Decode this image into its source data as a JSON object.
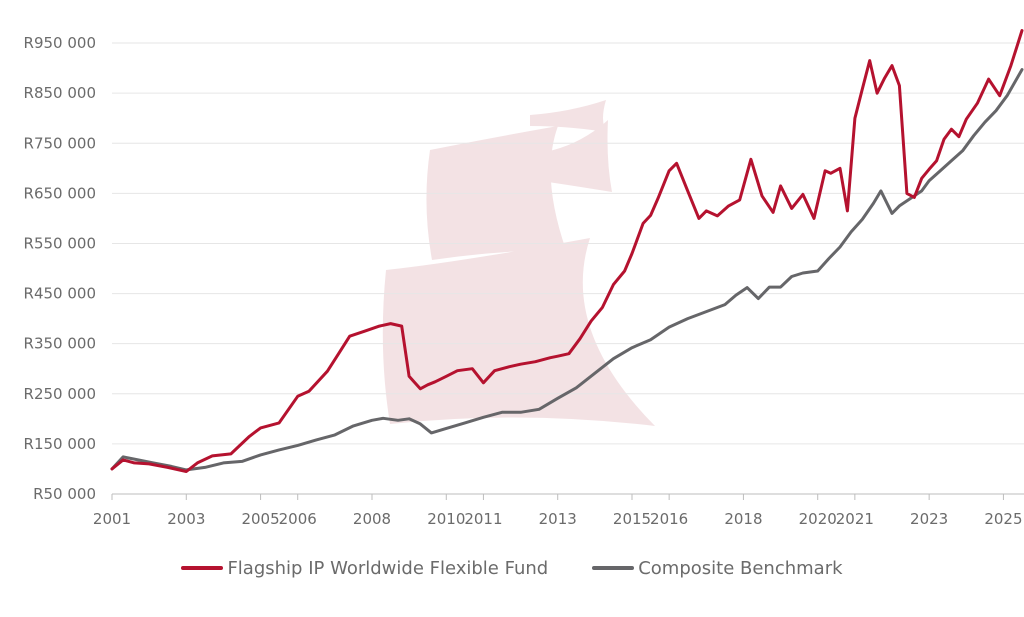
{
  "chart_data": {
    "type": "line",
    "title": "",
    "xlabel": "",
    "ylabel": "",
    "ylim": [
      50000,
      1000000
    ],
    "xlim": [
      2001.0,
      2025.5
    ],
    "grid": true,
    "legend_position": "bottom-center",
    "y_ticks": [
      "R950 000",
      "R850 000",
      "R750 000",
      "R650 000",
      "R550 000",
      "R450 000",
      "R350 000",
      "R250 000",
      "R150 000",
      "R50 000"
    ],
    "y_tick_values": [
      950000,
      850000,
      750000,
      650000,
      550000,
      450000,
      350000,
      250000,
      150000,
      50000
    ],
    "x_ticks": [
      "2001",
      "2003",
      "2005",
      "2006",
      "2008",
      "2010",
      "2011",
      "2013",
      "2015",
      "2016",
      "2018",
      "2020",
      "2021",
      "2023",
      "2025"
    ],
    "x_tick_values": [
      2001.0,
      2003.0,
      2005.0,
      2006.0,
      2008.0,
      2010.0,
      2011.0,
      2013.0,
      2015.0,
      2016.0,
      2018.0,
      2020.0,
      2021.0,
      2023.0,
      2025.0
    ],
    "series": [
      {
        "name": "Flagship IP Worldwide Flexible Fund",
        "color": "#b5122f",
        "x": [
          2001.0,
          2001.3,
          2001.6,
          2002.0,
          2002.5,
          2003.0,
          2003.3,
          2003.7,
          2004.2,
          2004.7,
          2005.0,
          2005.5,
          2006.0,
          2006.3,
          2006.8,
          2007.1,
          2007.4,
          2007.8,
          2008.2,
          2008.5,
          2008.8,
          2009.0,
          2009.3,
          2009.5,
          2009.7,
          2010.0,
          2010.3,
          2010.7,
          2011.0,
          2011.3,
          2011.7,
          2012.0,
          2012.4,
          2012.8,
          2013.0,
          2013.3,
          2013.6,
          2013.9,
          2014.2,
          2014.5,
          2014.8,
          2015.0,
          2015.3,
          2015.5,
          2015.7,
          2016.0,
          2016.2,
          2016.5,
          2016.8,
          2017.0,
          2017.3,
          2017.6,
          2017.9,
          2018.2,
          2018.5,
          2018.8,
          2019.0,
          2019.3,
          2019.6,
          2019.9,
          2020.2,
          2020.35,
          2020.6,
          2020.8,
          2021.0,
          2021.2,
          2021.4,
          2021.6,
          2021.8,
          2022.0,
          2022.2,
          2022.4,
          2022.6,
          2022.8,
          2023.0,
          2023.2,
          2023.4,
          2023.6,
          2023.8,
          2024.0,
          2024.3,
          2024.6,
          2024.9,
          2025.2,
          2025.5
        ],
        "values": [
          100000,
          118000,
          112000,
          110000,
          103000,
          95000,
          112000,
          126000,
          130000,
          165000,
          182000,
          192000,
          245000,
          255000,
          295000,
          330000,
          365000,
          375000,
          385000,
          390000,
          385000,
          285000,
          260000,
          268000,
          274000,
          285000,
          296000,
          300000,
          272000,
          296000,
          304000,
          309000,
          314000,
          322000,
          325000,
          330000,
          360000,
          395000,
          422000,
          468000,
          495000,
          530000,
          590000,
          606000,
          640000,
          695000,
          710000,
          655000,
          600000,
          615000,
          605000,
          625000,
          637000,
          718000,
          645000,
          612000,
          665000,
          620000,
          648000,
          600000,
          695000,
          690000,
          700000,
          615000,
          800000,
          858000,
          915000,
          850000,
          880000,
          905000,
          865000,
          650000,
          642000,
          680000,
          698000,
          715000,
          758000,
          778000,
          763000,
          798000,
          830000,
          878000,
          845000,
          905000,
          975000
        ]
      },
      {
        "name": "Composite Benchmark",
        "color": "#666669",
        "x": [
          2001.0,
          2001.3,
          2001.7,
          2002.1,
          2002.6,
          2003.0,
          2003.5,
          2004.0,
          2004.5,
          2005.0,
          2005.5,
          2006.0,
          2006.5,
          2007.0,
          2007.5,
          2008.0,
          2008.3,
          2008.7,
          2009.0,
          2009.3,
          2009.6,
          2010.0,
          2010.5,
          2011.0,
          2011.5,
          2012.0,
          2012.5,
          2013.0,
          2013.5,
          2014.0,
          2014.5,
          2015.0,
          2015.5,
          2016.0,
          2016.5,
          2017.0,
          2017.5,
          2017.8,
          2018.1,
          2018.4,
          2018.7,
          2019.0,
          2019.3,
          2019.6,
          2020.0,
          2020.3,
          2020.6,
          2020.9,
          2021.2,
          2021.5,
          2021.7,
          2022.0,
          2022.2,
          2022.5,
          2022.8,
          2023.0,
          2023.3,
          2023.6,
          2023.9,
          2024.2,
          2024.5,
          2024.8,
          2025.1,
          2025.5
        ],
        "values": [
          100000,
          124000,
          118000,
          112000,
          105000,
          98000,
          103000,
          112000,
          115000,
          128000,
          138000,
          147000,
          158000,
          168000,
          186000,
          197000,
          201000,
          197000,
          200000,
          190000,
          172000,
          181000,
          192000,
          203000,
          213000,
          213000,
          219000,
          241000,
          262000,
          291000,
          320000,
          342000,
          358000,
          383000,
          400000,
          414000,
          428000,
          447000,
          462000,
          440000,
          463000,
          463000,
          484000,
          491000,
          495000,
          520000,
          543000,
          573000,
          598000,
          630000,
          655000,
          610000,
          625000,
          640000,
          655000,
          675000,
          695000,
          715000,
          735000,
          765000,
          792000,
          815000,
          845000,
          897000
        ]
      }
    ]
  }
}
